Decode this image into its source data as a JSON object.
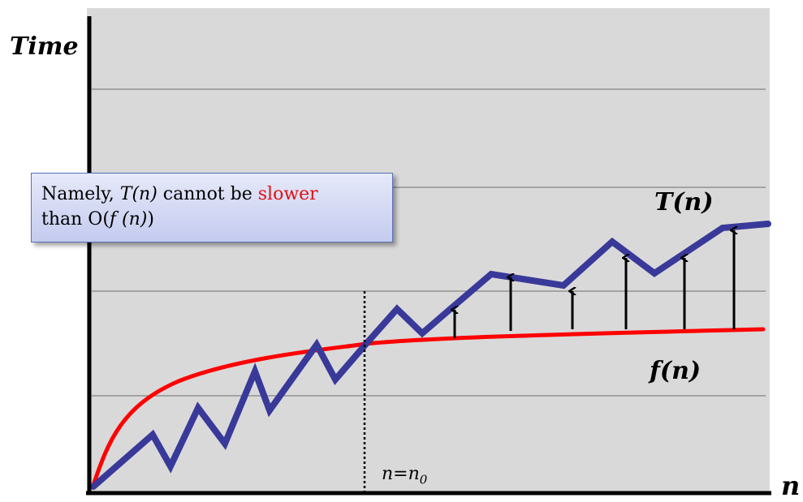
{
  "y_axis_label": "Time",
  "x_axis_label": "n",
  "curve_labels": {
    "t": "T(n)",
    "f": "f(n)"
  },
  "threshold_label": {
    "var": "n",
    "eq": "=",
    "base": "n",
    "sub": "0"
  },
  "note": {
    "word1": "Namely, ",
    "t_expr": "T(n)",
    "word2": " cannot be ",
    "highlight": "slower",
    "word3": "than O(",
    "f_expr": "f (n)",
    "word4": ")"
  },
  "colors": {
    "panel": "#d9d9d9",
    "t_curve": "#39399a",
    "f_curve": "#ff0000",
    "gridline": "#6d6d6d",
    "note_border": "#5b6fb5",
    "highlight": "#e01010"
  },
  "chart_data": {
    "type": "line",
    "grid": true,
    "series": [
      {
        "name": "T(n)",
        "x": [
          0,
          1,
          2,
          3,
          4,
          5,
          6,
          7,
          8,
          9,
          10,
          11,
          12,
          13,
          14,
          15,
          16,
          17,
          18,
          19
        ],
        "y": [
          0,
          1,
          0.3,
          1.5,
          0.8,
          2.2,
          1.4,
          2.7,
          2.0,
          2.9,
          3.5,
          3.0,
          4.2,
          4.0,
          4.4,
          5.2,
          4.6,
          5.0,
          5.5,
          5.6
        ]
      },
      {
        "name": "f(n)",
        "x": [
          0,
          1,
          2,
          3,
          4,
          5,
          6,
          7,
          8,
          9,
          10,
          11,
          12,
          13,
          14,
          15,
          16,
          17,
          18,
          19
        ],
        "y": [
          0,
          1.0,
          1.4,
          1.7,
          1.9,
          2.05,
          2.15,
          2.25,
          2.3,
          2.35,
          2.4,
          2.45,
          2.5,
          2.55,
          2.6,
          2.63,
          2.66,
          2.7,
          2.73,
          2.76
        ]
      }
    ],
    "threshold": "n0",
    "arrows_from_f_to_T": 7
  }
}
